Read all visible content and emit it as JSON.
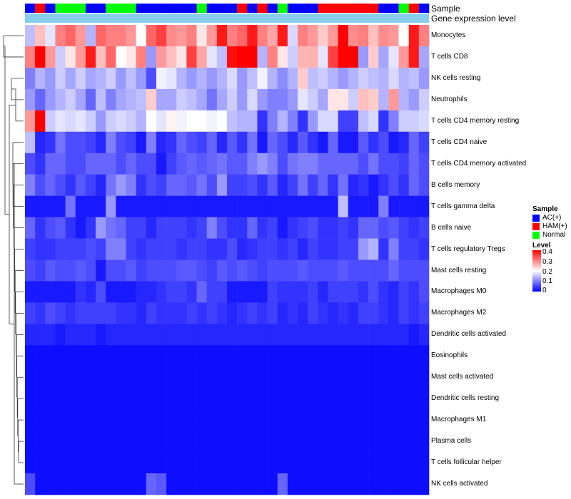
{
  "chart_data": {
    "type": "heatmap",
    "annotation_labels": {
      "sample": "Sample",
      "gene_expression": "Gene expression level"
    },
    "annotation_gene_color": "#87CEEB",
    "sample_legend": {
      "title": "Sample",
      "entries": [
        {
          "name": "AC(+)",
          "color": "#0000FF"
        },
        {
          "name": "HAM(+)",
          "color": "#FF0000"
        },
        {
          "name": "Normal",
          "color": "#00FF00"
        }
      ]
    },
    "level_legend": {
      "title": "Level",
      "ticks": [
        "0.4",
        "0.3",
        "0.2",
        "0.1",
        "0"
      ],
      "range": [
        0,
        0.4
      ],
      "colors": {
        "low": "#0000FF",
        "mid": "#FFFFFF",
        "high": "#FF0000"
      }
    },
    "sample_groups": [
      "AC",
      "HAM",
      "AC",
      "N",
      "N",
      "N",
      "AC",
      "AC",
      "N",
      "N",
      "N",
      "AC",
      "AC",
      "AC",
      "AC",
      "AC",
      "AC",
      "N",
      "AC",
      "AC",
      "AC",
      "HAM",
      "AC",
      "HAM",
      "AC",
      "N",
      "AC",
      "AC",
      "AC",
      "HAM",
      "HAM",
      "HAM",
      "HAM",
      "HAM",
      "HAM",
      "AC",
      "AC",
      "N",
      "HAM",
      "AC"
    ],
    "rows": [
      "Monocytes",
      "T cells CD8",
      "NK cells resting",
      "Neutrophils",
      "T cells CD4 memory resting",
      "T cells CD4 naive",
      "T cells CD4 memory activated",
      "B cells memory",
      "T cells gamma delta",
      "B cells naive",
      "T cells regulatory  Tregs",
      "Mast cells resting",
      "Macrophages M0",
      "Macrophages M2",
      "Dendritic cells activated",
      "Eosinophils",
      "Mast cells activated",
      "Dendritic cells resting",
      "Macrophages M1",
      "Plasma cells",
      "T cells follicular helper",
      "NK cells activated"
    ],
    "values": [
      [
        0.15,
        0.25,
        0.18,
        0.3,
        0.32,
        0.28,
        0.14,
        0.32,
        0.3,
        0.3,
        0.28,
        0.2,
        0.32,
        0.35,
        0.29,
        0.28,
        0.3,
        0.22,
        0.28,
        0.38,
        0.3,
        0.32,
        0.38,
        0.3,
        0.27,
        0.38,
        0.17,
        0.3,
        0.28,
        0.24,
        0.28,
        0.4,
        0.29,
        0.3,
        0.25,
        0.29,
        0.28,
        0.2,
        0.38,
        0.3
      ],
      [
        0.3,
        0.4,
        0.28,
        0.16,
        0.22,
        0.28,
        0.38,
        0.25,
        0.32,
        0.2,
        0.22,
        0.3,
        0.12,
        0.28,
        0.25,
        0.22,
        0.35,
        0.27,
        0.18,
        0.15,
        0.39,
        0.4,
        0.4,
        0.14,
        0.3,
        0.22,
        0.16,
        0.26,
        0.26,
        0.18,
        0.35,
        0.4,
        0.4,
        0.12,
        0.24,
        0.13,
        0.18,
        0.28,
        0.38,
        0.13
      ],
      [
        0.1,
        0.14,
        0.12,
        0.16,
        0.13,
        0.16,
        0.13,
        0.14,
        0.16,
        0.12,
        0.15,
        0.12,
        0.06,
        0.19,
        0.18,
        0.14,
        0.12,
        0.14,
        0.12,
        0.14,
        0.17,
        0.12,
        0.15,
        0.19,
        0.14,
        0.11,
        0.14,
        0.24,
        0.15,
        0.16,
        0.14,
        0.12,
        0.14,
        0.16,
        0.15,
        0.14,
        0.17,
        0.14,
        0.15,
        0.12
      ],
      [
        0.12,
        0.08,
        0.12,
        0.14,
        0.16,
        0.13,
        0.08,
        0.15,
        0.1,
        0.13,
        0.14,
        0.15,
        0.24,
        0.13,
        0.13,
        0.16,
        0.15,
        0.13,
        0.09,
        0.13,
        0.16,
        0.12,
        0.17,
        0.12,
        0.1,
        0.1,
        0.12,
        0.18,
        0.16,
        0.13,
        0.22,
        0.22,
        0.16,
        0.25,
        0.24,
        0.14,
        0.28,
        0.14,
        0.12,
        0.16
      ],
      [
        0.28,
        0.4,
        0.16,
        0.18,
        0.17,
        0.18,
        0.16,
        0.12,
        0.16,
        0.17,
        0.16,
        0.14,
        0.2,
        0.18,
        0.21,
        0.19,
        0.2,
        0.2,
        0.19,
        0.2,
        0.15,
        0.14,
        0.14,
        0.04,
        0.1,
        0.14,
        0.1,
        0.04,
        0.12,
        0.17,
        0.17,
        0.05,
        0.05,
        0.15,
        0.17,
        0.04,
        0.1,
        0.16,
        0.16,
        0.17
      ],
      [
        0.15,
        0.03,
        0.04,
        0.09,
        0.06,
        0.06,
        0.05,
        0.03,
        0.1,
        0.06,
        0.05,
        0.02,
        0.1,
        0.03,
        0.04,
        0.08,
        0.06,
        0.05,
        0.08,
        0.03,
        0.07,
        0.04,
        0.09,
        0.02,
        0.08,
        0.06,
        0.03,
        0.07,
        0.04,
        0.02,
        0.08,
        0.02,
        0.02,
        0.07,
        0.04,
        0.06,
        0.02,
        0.03,
        0.08,
        0.05
      ],
      [
        0.06,
        0.04,
        0.08,
        0.08,
        0.06,
        0.06,
        0.08,
        0.08,
        0.08,
        0.06,
        0.08,
        0.06,
        0.06,
        0.02,
        0.05,
        0.07,
        0.08,
        0.07,
        0.08,
        0.09,
        0.07,
        0.07,
        0.1,
        0.12,
        0.1,
        0.06,
        0.09,
        0.1,
        0.1,
        0.08,
        0.08,
        0.08,
        0.08,
        0.06,
        0.09,
        0.06,
        0.06,
        0.05,
        0.08,
        0.06
      ],
      [
        0.1,
        0.06,
        0.08,
        0.06,
        0.04,
        0.07,
        0.05,
        0.03,
        0.09,
        0.12,
        0.1,
        0.04,
        0.06,
        0.05,
        0.08,
        0.08,
        0.07,
        0.09,
        0.06,
        0.12,
        0.05,
        0.05,
        0.06,
        0.04,
        0.07,
        0.03,
        0.05,
        0.09,
        0.05,
        0.08,
        0.04,
        0.09,
        0.03,
        0.04,
        0.02,
        0.04,
        0.06,
        0.04,
        0.08,
        0.06
      ],
      [
        0.02,
        0.02,
        0.02,
        0.02,
        0.09,
        0.02,
        0.02,
        0.02,
        0.12,
        0.02,
        0.02,
        0.02,
        0.02,
        0.02,
        0.02,
        0.02,
        0.02,
        0.02,
        0.02,
        0.02,
        0.02,
        0.02,
        0.02,
        0.02,
        0.02,
        0.02,
        0.02,
        0.02,
        0.02,
        0.02,
        0.02,
        0.15,
        0.02,
        0.02,
        0.02,
        0.1,
        0.02,
        0.02,
        0.02,
        0.02
      ],
      [
        0.08,
        0.04,
        0.06,
        0.07,
        0.04,
        0.02,
        0.04,
        0.12,
        0.09,
        0.08,
        0.05,
        0.05,
        0.03,
        0.05,
        0.05,
        0.05,
        0.04,
        0.05,
        0.1,
        0.06,
        0.04,
        0.04,
        0.08,
        0.04,
        0.05,
        0.02,
        0.04,
        0.05,
        0.06,
        0.04,
        0.04,
        0.05,
        0.04,
        0.08,
        0.08,
        0.06,
        0.07,
        0.05,
        0.04,
        0.05
      ],
      [
        0.05,
        0.04,
        0.04,
        0.05,
        0.05,
        0.05,
        0.06,
        0.05,
        0.1,
        0.1,
        0.05,
        0.04,
        0.05,
        0.05,
        0.05,
        0.04,
        0.05,
        0.05,
        0.04,
        0.04,
        0.06,
        0.03,
        0.04,
        0.05,
        0.05,
        0.04,
        0.05,
        0.03,
        0.05,
        0.04,
        0.04,
        0.05,
        0.05,
        0.12,
        0.14,
        0.04,
        0.1,
        0.05,
        0.05,
        0.04
      ],
      [
        0.06,
        0.05,
        0.07,
        0.06,
        0.06,
        0.07,
        0.06,
        0.02,
        0.06,
        0.06,
        0.07,
        0.05,
        0.06,
        0.06,
        0.06,
        0.07,
        0.07,
        0.06,
        0.05,
        0.07,
        0.06,
        0.07,
        0.06,
        0.05,
        0.06,
        0.06,
        0.06,
        0.07,
        0.06,
        0.06,
        0.06,
        0.07,
        0.06,
        0.06,
        0.06,
        0.06,
        0.08,
        0.06,
        0.06,
        0.06
      ],
      [
        0.02,
        0.02,
        0.02,
        0.02,
        0.02,
        0.04,
        0.03,
        0.06,
        0.02,
        0.02,
        0.02,
        0.03,
        0.03,
        0.04,
        0.05,
        0.05,
        0.04,
        0.08,
        0.05,
        0.05,
        0.02,
        0.02,
        0.02,
        0.02,
        0.05,
        0.04,
        0.04,
        0.04,
        0.05,
        0.03,
        0.05,
        0.05,
        0.05,
        0.04,
        0.06,
        0.04,
        0.03,
        0.05,
        0.04,
        0.06
      ],
      [
        0.05,
        0.04,
        0.06,
        0.05,
        0.04,
        0.05,
        0.05,
        0.05,
        0.05,
        0.04,
        0.04,
        0.03,
        0.05,
        0.04,
        0.04,
        0.04,
        0.05,
        0.04,
        0.05,
        0.04,
        0.03,
        0.04,
        0.05,
        0.04,
        0.05,
        0.03,
        0.04,
        0.03,
        0.05,
        0.04,
        0.03,
        0.04,
        0.03,
        0.05,
        0.05,
        0.04,
        0.03,
        0.05,
        0.04,
        0.05
      ],
      [
        0.03,
        0.03,
        0.03,
        0.02,
        0.03,
        0.03,
        0.03,
        0.02,
        0.03,
        0.03,
        0.03,
        0.03,
        0.03,
        0.03,
        0.03,
        0.03,
        0.03,
        0.03,
        0.03,
        0.03,
        0.03,
        0.03,
        0.03,
        0.03,
        0.03,
        0.03,
        0.03,
        0.03,
        0.03,
        0.03,
        0.03,
        0.03,
        0.03,
        0.03,
        0.03,
        0.03,
        0.03,
        0.03,
        0.02,
        0.03
      ],
      [
        0.01,
        0.01,
        0.01,
        0.01,
        0.01,
        0.01,
        0.01,
        0.01,
        0.01,
        0.01,
        0.01,
        0.01,
        0.01,
        0.01,
        0.01,
        0.01,
        0.01,
        0.01,
        0.01,
        0.01,
        0.01,
        0.01,
        0.01,
        0.01,
        0.01,
        0.01,
        0.01,
        0.01,
        0.01,
        0.01,
        0.01,
        0.01,
        0.01,
        0.01,
        0.01,
        0.01,
        0.01,
        0.01,
        0.01,
        0.01
      ],
      [
        0.01,
        0.01,
        0.01,
        0.01,
        0.01,
        0.01,
        0.01,
        0.01,
        0.01,
        0.01,
        0.01,
        0.01,
        0.01,
        0.01,
        0.01,
        0.01,
        0.01,
        0.01,
        0.01,
        0.01,
        0.01,
        0.01,
        0.01,
        0.01,
        0.01,
        0.01,
        0.01,
        0.01,
        0.01,
        0.01,
        0.01,
        0.01,
        0.01,
        0.01,
        0.01,
        0.01,
        0.01,
        0.01,
        0.01,
        0.01
      ],
      [
        0.01,
        0.01,
        0.01,
        0.01,
        0.01,
        0.01,
        0.01,
        0.01,
        0.01,
        0.01,
        0.01,
        0.01,
        0.01,
        0.01,
        0.01,
        0.01,
        0.01,
        0.01,
        0.01,
        0.01,
        0.01,
        0.01,
        0.01,
        0.01,
        0.01,
        0.01,
        0.01,
        0.01,
        0.01,
        0.01,
        0.01,
        0.01,
        0.01,
        0.01,
        0.01,
        0.01,
        0.01,
        0.01,
        0.01,
        0.01
      ],
      [
        0.01,
        0.01,
        0.01,
        0.01,
        0.01,
        0.01,
        0.01,
        0.01,
        0.01,
        0.01,
        0.01,
        0.01,
        0.01,
        0.01,
        0.01,
        0.01,
        0.01,
        0.01,
        0.01,
        0.01,
        0.01,
        0.01,
        0.01,
        0.01,
        0.01,
        0.01,
        0.01,
        0.01,
        0.01,
        0.01,
        0.01,
        0.01,
        0.01,
        0.01,
        0.01,
        0.01,
        0.01,
        0.01,
        0.01,
        0.01
      ],
      [
        0.01,
        0.01,
        0.01,
        0.01,
        0.01,
        0.01,
        0.01,
        0.01,
        0.01,
        0.01,
        0.01,
        0.01,
        0.01,
        0.01,
        0.01,
        0.01,
        0.01,
        0.01,
        0.01,
        0.01,
        0.01,
        0.01,
        0.01,
        0.01,
        0.01,
        0.01,
        0.01,
        0.01,
        0.01,
        0.01,
        0.01,
        0.01,
        0.01,
        0.01,
        0.01,
        0.01,
        0.01,
        0.01,
        0.01,
        0.01
      ],
      [
        0.01,
        0.01,
        0.01,
        0.01,
        0.01,
        0.01,
        0.01,
        0.01,
        0.01,
        0.01,
        0.01,
        0.01,
        0.01,
        0.01,
        0.01,
        0.01,
        0.01,
        0.01,
        0.01,
        0.01,
        0.01,
        0.01,
        0.01,
        0.01,
        0.01,
        0.01,
        0.01,
        0.01,
        0.01,
        0.01,
        0.01,
        0.01,
        0.01,
        0.01,
        0.01,
        0.01,
        0.01,
        0.01,
        0.01,
        0.01
      ],
      [
        0.06,
        0.01,
        0.01,
        0.01,
        0.01,
        0.01,
        0.01,
        0.01,
        0.01,
        0.01,
        0.01,
        0.01,
        0.08,
        0.07,
        0.01,
        0.01,
        0.01,
        0.01,
        0.01,
        0.01,
        0.01,
        0.01,
        0.01,
        0.01,
        0.01,
        0.08,
        0.01,
        0.01,
        0.01,
        0.01,
        0.01,
        0.01,
        0.01,
        0.01,
        0.01,
        0.01,
        0.01,
        0.01,
        0.01,
        0.01
      ]
    ]
  }
}
